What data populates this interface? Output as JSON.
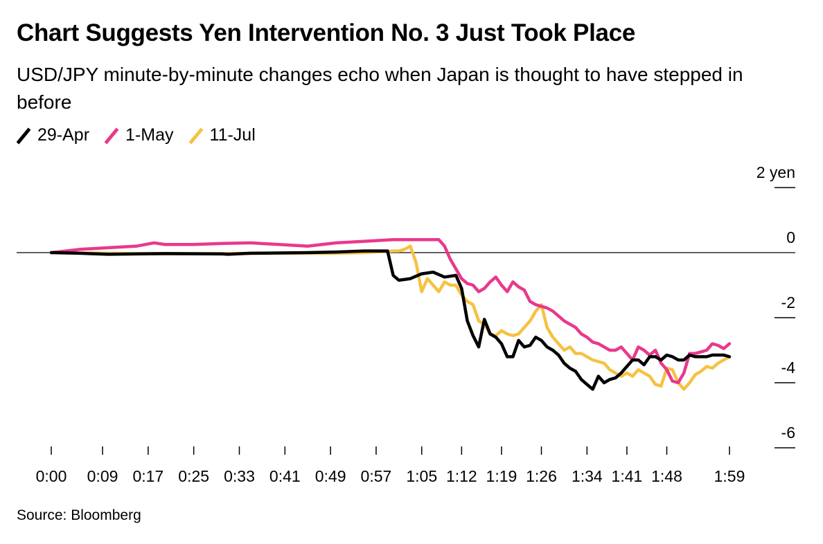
{
  "title": "Chart Suggests Yen Intervention No. 3 Just Took Place",
  "subtitle": "USD/JPY minute-by-minute changes echo when Japan is thought to have stepped in before",
  "source": "Source: Bloomberg",
  "colors": {
    "29-Apr": "#000000",
    "1-May": "#e8398c",
    "11-Jul": "#f5c242"
  },
  "chart_data": {
    "type": "line",
    "legend_placement": "top-left",
    "grid": false,
    "xlabel": "",
    "ylabel": "",
    "x_unit": "minutes",
    "xlim": [
      0,
      119
    ],
    "ylim": [
      -6,
      2
    ],
    "y_unit": "yen",
    "y_ticks": [
      {
        "value": 2,
        "label": "2 yen"
      },
      {
        "value": 0,
        "label": "0"
      },
      {
        "value": -2,
        "label": "-2"
      },
      {
        "value": -4,
        "label": "-4"
      },
      {
        "value": -6,
        "label": "-6"
      }
    ],
    "x_ticks": [
      {
        "value": 0,
        "label": "0:00"
      },
      {
        "value": 9,
        "label": "0:09"
      },
      {
        "value": 17,
        "label": "0:17"
      },
      {
        "value": 25,
        "label": "0:25"
      },
      {
        "value": 33,
        "label": "0:33"
      },
      {
        "value": 41,
        "label": "0:41"
      },
      {
        "value": 49,
        "label": "0:49"
      },
      {
        "value": 57,
        "label": "0:57"
      },
      {
        "value": 65,
        "label": "1:05"
      },
      {
        "value": 72,
        "label": "1:12"
      },
      {
        "value": 79,
        "label": "1:19"
      },
      {
        "value": 86,
        "label": "1:26"
      },
      {
        "value": 94,
        "label": "1:34"
      },
      {
        "value": 101,
        "label": "1:41"
      },
      {
        "value": 108,
        "label": "1:48"
      },
      {
        "value": 119,
        "label": "1:59"
      }
    ],
    "series": [
      {
        "name": "29-Apr",
        "color": "#000000",
        "x": [
          0,
          5,
          10,
          20,
          30,
          31,
          35,
          40,
          45,
          50,
          55,
          59,
          60,
          61,
          63,
          65,
          67,
          69,
          71,
          72,
          73,
          74,
          75,
          76,
          77,
          78,
          79,
          80,
          81,
          82,
          83,
          84,
          85,
          86,
          87,
          88,
          89,
          90,
          91,
          92,
          93,
          94,
          95,
          96,
          97,
          98,
          99,
          100,
          101,
          102,
          103,
          104,
          105,
          106,
          107,
          108,
          109,
          110,
          111,
          112,
          113,
          114,
          115,
          116,
          117,
          118,
          119
        ],
        "y": [
          0,
          -0.02,
          -0.05,
          -0.03,
          -0.04,
          -0.05,
          -0.02,
          -0.01,
          0.0,
          0.02,
          0.05,
          0.05,
          -0.7,
          -0.85,
          -0.8,
          -0.65,
          -0.6,
          -0.75,
          -0.7,
          -1.1,
          -2.1,
          -2.55,
          -2.9,
          -2.05,
          -2.5,
          -2.6,
          -2.8,
          -3.2,
          -3.2,
          -2.7,
          -2.9,
          -2.85,
          -2.6,
          -2.7,
          -2.9,
          -3.0,
          -3.15,
          -3.4,
          -3.55,
          -3.65,
          -3.9,
          -4.05,
          -4.2,
          -3.8,
          -4.0,
          -3.9,
          -3.85,
          -3.7,
          -3.5,
          -3.3,
          -3.3,
          -3.45,
          -3.2,
          -3.2,
          -3.3,
          -3.15,
          -3.2,
          -3.3,
          -3.3,
          -3.15,
          -3.2,
          -3.2,
          -3.2,
          -3.15,
          -3.15,
          -3.15,
          -3.2
        ]
      },
      {
        "name": "1-May",
        "color": "#e8398c",
        "x": [
          0,
          5,
          10,
          15,
          18,
          20,
          25,
          30,
          35,
          40,
          45,
          50,
          55,
          60,
          65,
          68,
          69,
          70,
          71,
          72,
          73,
          74,
          75,
          76,
          77,
          78,
          79,
          80,
          81,
          82,
          83,
          84,
          85,
          86,
          87,
          88,
          89,
          90,
          91,
          92,
          93,
          94,
          95,
          96,
          97,
          98,
          99,
          100,
          101,
          102,
          103,
          104,
          105,
          106,
          107,
          108,
          109,
          110,
          111,
          112,
          113,
          114,
          115,
          116,
          117,
          118,
          119
        ],
        "y": [
          0,
          0.1,
          0.15,
          0.2,
          0.3,
          0.25,
          0.25,
          0.28,
          0.3,
          0.25,
          0.2,
          0.3,
          0.35,
          0.4,
          0.4,
          0.4,
          0.2,
          -0.2,
          -0.5,
          -0.8,
          -0.95,
          -1.0,
          -1.2,
          -1.1,
          -0.9,
          -0.75,
          -1.0,
          -1.2,
          -0.9,
          -1.05,
          -1.15,
          -1.5,
          -1.6,
          -1.65,
          -1.7,
          -1.8,
          -1.95,
          -2.1,
          -2.2,
          -2.3,
          -2.5,
          -2.6,
          -2.75,
          -2.8,
          -2.9,
          -3.0,
          -3.0,
          -2.9,
          -3.1,
          -3.3,
          -2.9,
          -3.0,
          -3.15,
          -3.0,
          -3.4,
          -3.6,
          -3.95,
          -4.0,
          -3.7,
          -3.1,
          -3.1,
          -3.05,
          -3.0,
          -2.8,
          -2.85,
          -2.95,
          -2.8
        ]
      },
      {
        "name": "11-Jul",
        "color": "#f5c242",
        "x": [
          0,
          10,
          20,
          30,
          40,
          50,
          55,
          60,
          61,
          62,
          63,
          64,
          65,
          66,
          67,
          68,
          69,
          70,
          71,
          72,
          73,
          74,
          75,
          76,
          77,
          78,
          79,
          80,
          81,
          82,
          83,
          84,
          85,
          86,
          87,
          88,
          89,
          90,
          91,
          92,
          93,
          94,
          95,
          96,
          97,
          98,
          99,
          100,
          101,
          102,
          103,
          104,
          105,
          106,
          107,
          108,
          109,
          110,
          111,
          112,
          113,
          114,
          115,
          116,
          117,
          118,
          119
        ],
        "y": [
          0,
          -0.02,
          -0.04,
          -0.03,
          -0.02,
          -0.02,
          0.0,
          0.05,
          0.05,
          0.1,
          0.2,
          -0.3,
          -1.2,
          -0.8,
          -1.0,
          -1.2,
          -0.9,
          -1.0,
          -1.0,
          -1.3,
          -1.5,
          -1.6,
          -2.1,
          -2.2,
          -2.5,
          -2.55,
          -2.4,
          -2.5,
          -2.55,
          -2.5,
          -2.3,
          -2.1,
          -1.8,
          -1.6,
          -2.3,
          -2.6,
          -2.8,
          -3.0,
          -2.9,
          -3.1,
          -3.1,
          -3.2,
          -3.3,
          -3.35,
          -3.4,
          -3.6,
          -3.7,
          -3.8,
          -3.7,
          -3.8,
          -3.6,
          -3.7,
          -3.8,
          -4.05,
          -4.1,
          -3.55,
          -3.6,
          -4.0,
          -4.2,
          -4.0,
          -3.75,
          -3.65,
          -3.5,
          -3.55,
          -3.4,
          -3.3,
          -3.2
        ]
      }
    ]
  }
}
